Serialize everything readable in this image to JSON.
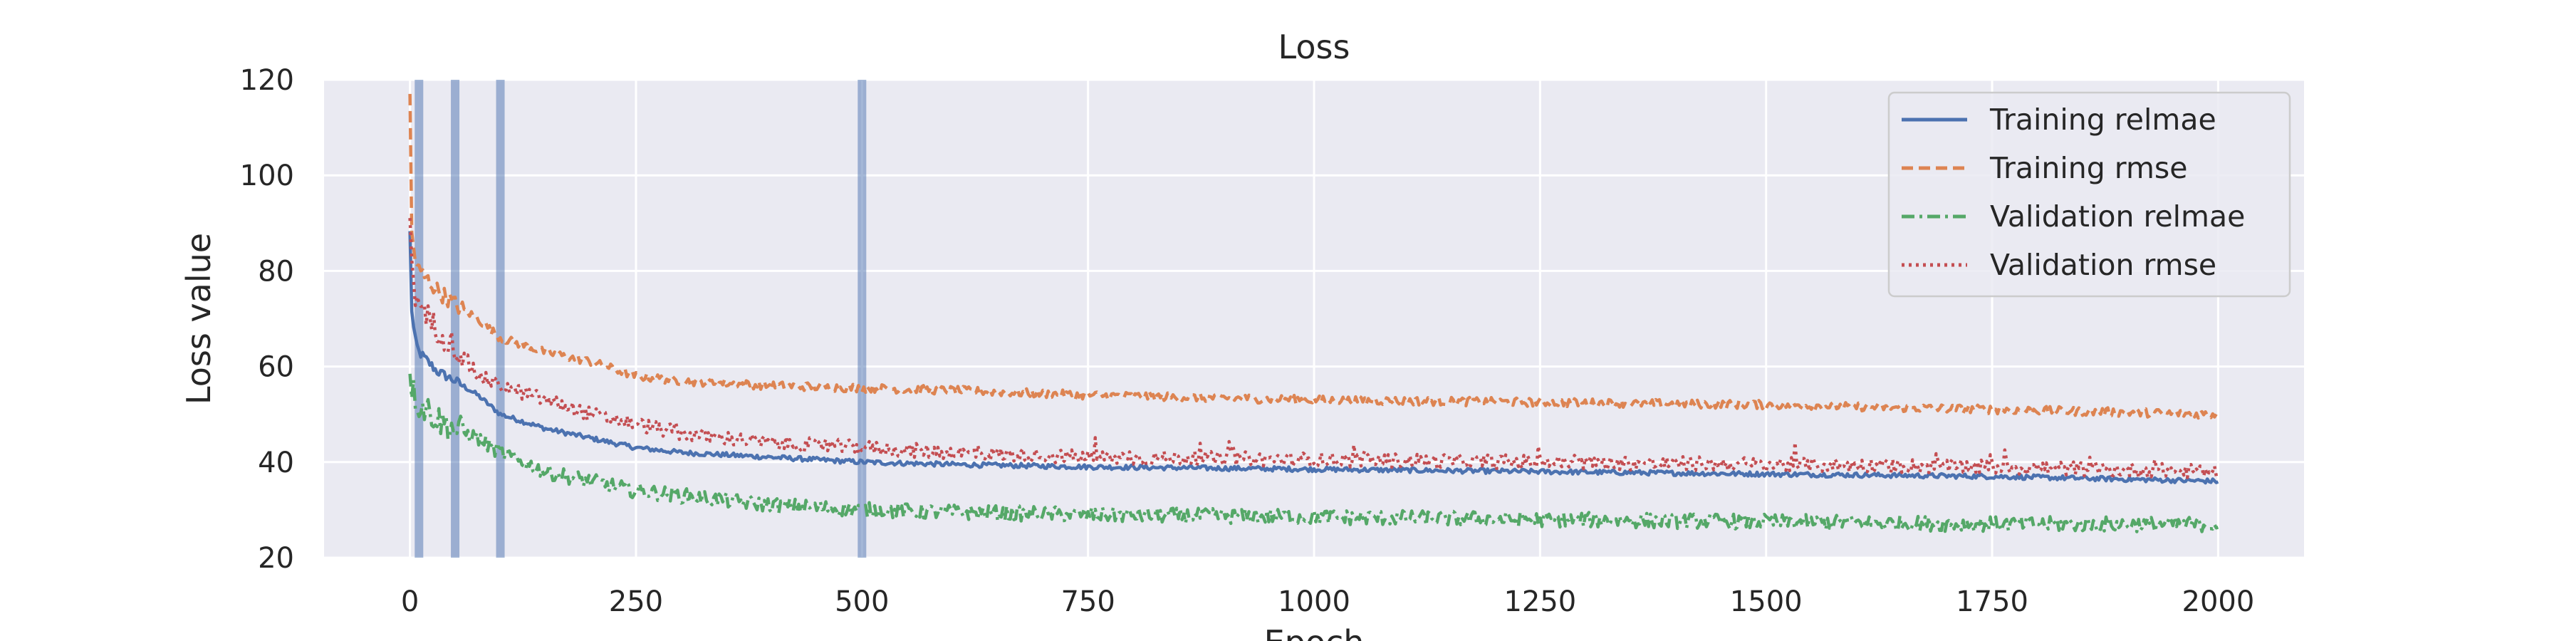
{
  "chart_data": {
    "type": "line",
    "title": "Loss",
    "xlabel": "Epoch",
    "ylabel": "Loss value",
    "xlim": [
      -95,
      2095
    ],
    "ylim": [
      20,
      120
    ],
    "xticks": [
      0,
      250,
      500,
      750,
      1000,
      1250,
      1500,
      1750,
      2000
    ],
    "yticks": [
      20,
      40,
      60,
      80,
      100,
      120
    ],
    "grid": true,
    "legend_position": "top-right",
    "vertical_lines": [
      10,
      50,
      100,
      500
    ],
    "series": [
      {
        "name": "Training relmae",
        "color": "#4c72b0",
        "style": "solid",
        "x": [
          0,
          2,
          5,
          10,
          20,
          30,
          50,
          75,
          100,
          150,
          200,
          250,
          300,
          400,
          500,
          600,
          750,
          1000,
          1250,
          1500,
          1750,
          2000
        ],
        "y": [
          88,
          72,
          66,
          63,
          61,
          59,
          57,
          54,
          50,
          47,
          45,
          43,
          42,
          41,
          40,
          39.5,
          39,
          38.5,
          38,
          37.5,
          37,
          36
        ]
      },
      {
        "name": "Training rmse",
        "color": "#dd8452",
        "style": "dashed",
        "x": [
          0,
          2,
          5,
          10,
          20,
          30,
          50,
          75,
          100,
          150,
          200,
          250,
          300,
          400,
          500,
          600,
          750,
          1000,
          1250,
          1500,
          1750,
          2000
        ],
        "y": [
          116,
          88,
          83,
          80,
          78,
          76,
          73,
          70,
          66,
          63,
          61,
          58,
          57,
          56,
          55.5,
          55,
          54,
          53,
          52.5,
          52,
          51,
          50
        ]
      },
      {
        "name": "Validation relmae",
        "color": "#55a868",
        "style": "dashdot",
        "x": [
          0,
          2,
          5,
          10,
          20,
          30,
          50,
          75,
          100,
          150,
          200,
          250,
          300,
          400,
          500,
          600,
          750,
          1000,
          1250,
          1500,
          1750,
          2000
        ],
        "y": [
          60,
          56,
          54,
          52,
          51,
          49,
          47,
          45,
          42,
          38,
          36,
          34,
          33,
          31,
          30,
          29.5,
          29,
          28.5,
          28,
          27.5,
          27,
          27
        ]
      },
      {
        "name": "Validation rmse",
        "color": "#c44e52",
        "style": "dotted",
        "x": [
          0,
          2,
          5,
          10,
          20,
          30,
          50,
          75,
          100,
          150,
          200,
          250,
          300,
          400,
          500,
          600,
          750,
          1000,
          1250,
          1500,
          1750,
          2000
        ],
        "y": [
          90,
          80,
          76,
          72,
          70,
          68,
          64,
          58,
          56,
          53,
          50,
          48,
          46,
          44,
          43,
          42,
          41,
          40.5,
          40,
          39.5,
          39,
          38
        ]
      }
    ]
  }
}
